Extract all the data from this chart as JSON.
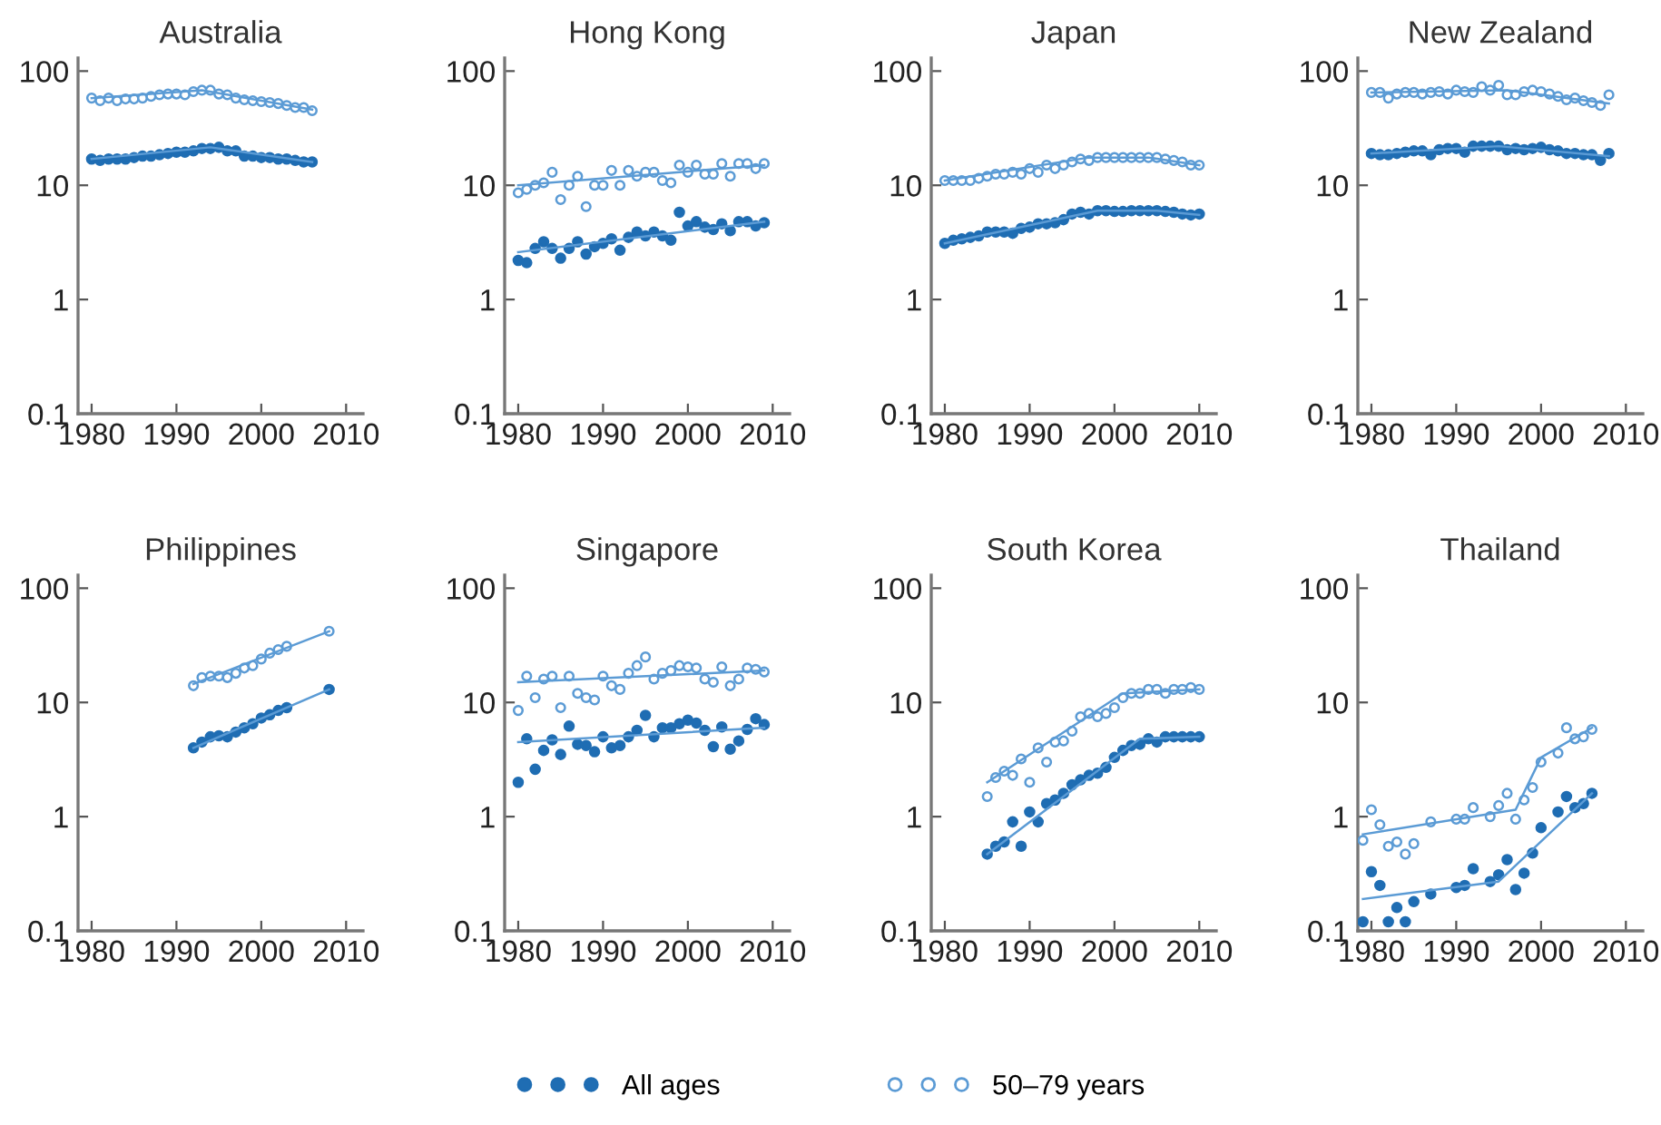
{
  "chart_data": [
    {
      "type": "scatter",
      "title": "Australia",
      "log": "y",
      "xlim": [
        1978.4,
        2012
      ],
      "xticks": [
        1980,
        1990,
        2000,
        2010
      ],
      "ylim": [
        0.1,
        130
      ],
      "yticks": [
        0.1,
        1,
        10,
        100
      ],
      "grid": false,
      "legend": "bottom",
      "series": [
        {
          "name": "All ages",
          "color": "#1f6db3",
          "marker": "circle",
          "x": [
            1980,
            1981,
            1982,
            1983,
            1984,
            1985,
            1986,
            1987,
            1988,
            1989,
            1990,
            1991,
            1992,
            1993,
            1994,
            1995,
            1996,
            1997,
            1998,
            1999,
            2000,
            2001,
            2002,
            2003,
            2004,
            2005,
            2006
          ],
          "values": [
            17,
            16.5,
            17,
            17,
            17,
            17.5,
            18,
            18,
            18.5,
            19,
            19.5,
            19.5,
            20,
            21,
            21,
            21.5,
            20,
            20,
            18,
            18,
            17.5,
            17.5,
            17,
            17,
            16.5,
            16,
            16
          ]
        },
        {
          "name": "50–79 years",
          "color": "#5b9bd5",
          "marker": "circle",
          "x": [
            1980,
            1981,
            1982,
            1983,
            1984,
            1985,
            1986,
            1987,
            1988,
            1989,
            1990,
            1991,
            1992,
            1993,
            1994,
            1995,
            1996,
            1997,
            1998,
            1999,
            2000,
            2001,
            2002,
            2003,
            2004,
            2005,
            2006
          ],
          "values": [
            58,
            55,
            58,
            55,
            57,
            57,
            58,
            60,
            62,
            63,
            63,
            62,
            66,
            68,
            68,
            63,
            62,
            58,
            56,
            55,
            54,
            53,
            52,
            50,
            48,
            48,
            45
          ]
        },
        {
          "type": "line",
          "color": "#5b9bd5",
          "marker": "none",
          "x": [
            1980,
            1994,
            2006
          ],
          "values": [
            17,
            21.5,
            16
          ]
        },
        {
          "type": "line",
          "color": "#5b9bd5",
          "marker": "none",
          "x": [
            1980,
            1993,
            2006
          ],
          "values": [
            58,
            68,
            46
          ]
        }
      ]
    },
    {
      "type": "scatter",
      "title": "Hong Kong",
      "log": "y",
      "xlim": [
        1978.4,
        2012
      ],
      "xticks": [
        1980,
        1990,
        2000,
        2010
      ],
      "ylim": [
        0.1,
        130
      ],
      "yticks": [
        0.1,
        1,
        10,
        100
      ],
      "grid": false,
      "series": [
        {
          "color": "#1f6db3",
          "marker": "circle",
          "x": [
            1980,
            1981,
            1982,
            1983,
            1984,
            1985,
            1986,
            1987,
            1988,
            1989,
            1990,
            1991,
            1992,
            1993,
            1994,
            1995,
            1996,
            1997,
            1998,
            1999,
            2000,
            2001,
            2002,
            2003,
            2004,
            2005,
            2006,
            2007,
            2008,
            2009
          ],
          "values": [
            2.2,
            2.1,
            2.8,
            3.2,
            2.8,
            2.3,
            2.8,
            3.2,
            2.5,
            2.9,
            3.1,
            3.4,
            2.7,
            3.5,
            3.9,
            3.6,
            3.9,
            3.6,
            3.3,
            5.8,
            4.4,
            4.8,
            4.3,
            4.1,
            4.6,
            4.0,
            4.8,
            4.8,
            4.4,
            4.7
          ]
        },
        {
          "color": "#5b9bd5",
          "marker": "circle",
          "x": [
            1980,
            1981,
            1982,
            1983,
            1984,
            1985,
            1986,
            1987,
            1988,
            1989,
            1990,
            1991,
            1992,
            1993,
            1994,
            1995,
            1996,
            1997,
            1998,
            1999,
            2000,
            2001,
            2002,
            2003,
            2004,
            2005,
            2006,
            2007,
            2008,
            2009
          ],
          "values": [
            8.6,
            9.2,
            10,
            10.5,
            13,
            7.5,
            10,
            12,
            6.5,
            10,
            10,
            13.5,
            10,
            13.5,
            12,
            13,
            13,
            11,
            10.5,
            15,
            13,
            15,
            12.5,
            12.5,
            15.5,
            12,
            15.5,
            15.5,
            14,
            15.5
          ]
        },
        {
          "type": "line",
          "color": "#5b9bd5",
          "marker": "none",
          "x": [
            1980,
            2009
          ],
          "values": [
            2.6,
            4.8
          ]
        },
        {
          "type": "line",
          "color": "#5b9bd5",
          "marker": "none",
          "x": [
            1980,
            2009
          ],
          "values": [
            10,
            15
          ]
        }
      ]
    },
    {
      "type": "scatter",
      "title": "Japan",
      "log": "y",
      "xlim": [
        1978.4,
        2012
      ],
      "xticks": [
        1980,
        1990,
        2000,
        2010
      ],
      "ylim": [
        0.1,
        130
      ],
      "yticks": [
        0.1,
        1,
        10,
        100
      ],
      "grid": false,
      "series": [
        {
          "color": "#1f6db3",
          "marker": "circle",
          "x": [
            1980,
            1981,
            1982,
            1983,
            1984,
            1985,
            1986,
            1987,
            1988,
            1989,
            1990,
            1991,
            1992,
            1993,
            1994,
            1995,
            1996,
            1997,
            1998,
            1999,
            2000,
            2001,
            2002,
            2003,
            2004,
            2005,
            2006,
            2007,
            2008,
            2009,
            2010
          ],
          "values": [
            3.1,
            3.3,
            3.4,
            3.5,
            3.6,
            3.9,
            3.9,
            3.9,
            3.8,
            4.2,
            4.3,
            4.6,
            4.6,
            4.7,
            5,
            5.6,
            5.8,
            5.6,
            6,
            6,
            5.9,
            5.9,
            6,
            6,
            6,
            6,
            5.9,
            5.8,
            5.6,
            5.5,
            5.6
          ]
        },
        {
          "color": "#5b9bd5",
          "marker": "circle",
          "x": [
            1980,
            1981,
            1982,
            1983,
            1984,
            1985,
            1986,
            1987,
            1988,
            1989,
            1990,
            1991,
            1992,
            1993,
            1994,
            1995,
            1996,
            1997,
            1998,
            1999,
            2000,
            2001,
            2002,
            2003,
            2004,
            2005,
            2006,
            2007,
            2008,
            2009,
            2010
          ],
          "values": [
            11,
            11,
            11,
            11,
            11.5,
            12,
            12.5,
            12.5,
            13,
            12.5,
            14,
            13,
            15,
            14,
            15,
            16,
            17,
            16.5,
            17.5,
            17.5,
            17.5,
            17.5,
            17.5,
            17.5,
            17.5,
            17.5,
            17,
            16.5,
            16,
            15,
            15
          ]
        },
        {
          "type": "line",
          "color": "#5b9bd5",
          "marker": "none",
          "x": [
            1980,
            1998,
            2005,
            2010
          ],
          "values": [
            3.1,
            6,
            6,
            5.5
          ]
        },
        {
          "type": "line",
          "color": "#5b9bd5",
          "marker": "none",
          "x": [
            1980,
            1997,
            2004,
            2010
          ],
          "values": [
            11,
            17.5,
            17.5,
            15
          ]
        }
      ]
    },
    {
      "type": "scatter",
      "title": "New Zealand",
      "log": "y",
      "xlim": [
        1978.4,
        2012
      ],
      "xticks": [
        1980,
        1990,
        2000,
        2010
      ],
      "ylim": [
        0.1,
        130
      ],
      "yticks": [
        0.1,
        1,
        10,
        100
      ],
      "grid": false,
      "series": [
        {
          "color": "#1f6db3",
          "marker": "circle",
          "x": [
            1980,
            1981,
            1982,
            1983,
            1984,
            1985,
            1986,
            1987,
            1988,
            1989,
            1990,
            1991,
            1992,
            1993,
            1994,
            1995,
            1996,
            1997,
            1998,
            1999,
            2000,
            2001,
            2002,
            2003,
            2004,
            2005,
            2006,
            2007,
            2008
          ],
          "values": [
            19,
            18.5,
            18.5,
            19,
            19.5,
            20,
            20,
            18.5,
            20.5,
            21,
            21,
            19.5,
            22,
            22,
            22,
            22,
            20.5,
            21,
            20.5,
            21,
            21.5,
            20.5,
            20,
            19,
            19,
            18.5,
            18.5,
            16.5,
            19
          ]
        },
        {
          "color": "#5b9bd5",
          "marker": "circle",
          "x": [
            1980,
            1981,
            1982,
            1983,
            1984,
            1985,
            1986,
            1987,
            1988,
            1989,
            1990,
            1991,
            1992,
            1993,
            1994,
            1995,
            1996,
            1997,
            1998,
            1999,
            2000,
            2001,
            2002,
            2003,
            2004,
            2005,
            2006,
            2007,
            2008
          ],
          "values": [
            65,
            65,
            58,
            63,
            65,
            65,
            63,
            65,
            66,
            63,
            68,
            66,
            65,
            73,
            68,
            75,
            62,
            62,
            66,
            68,
            66,
            63,
            60,
            56,
            58,
            55,
            53,
            50,
            62
          ]
        },
        {
          "type": "line",
          "color": "#5b9bd5",
          "marker": "none",
          "x": [
            1980,
            1995,
            2008
          ],
          "values": [
            19,
            22,
            18
          ]
        },
        {
          "type": "line",
          "color": "#5b9bd5",
          "marker": "none",
          "x": [
            1980,
            1996,
            2008
          ],
          "values": [
            65,
            68,
            52
          ]
        }
      ]
    },
    {
      "type": "scatter",
      "title": "Philippines",
      "log": "y",
      "xlim": [
        1978.4,
        2012
      ],
      "xticks": [
        1980,
        1990,
        2000,
        2010
      ],
      "ylim": [
        0.1,
        130
      ],
      "yticks": [
        0.1,
        1,
        10,
        100
      ],
      "grid": false,
      "series": [
        {
          "color": "#1f6db3",
          "marker": "circle",
          "x": [
            1992,
            1993,
            1994,
            1995,
            1996,
            1997,
            1998,
            1999,
            2000,
            2001,
            2002,
            2003,
            2008
          ],
          "values": [
            4.0,
            4.5,
            5.0,
            5.1,
            5.0,
            5.5,
            6.0,
            6.5,
            7.3,
            7.8,
            8.5,
            9.0,
            13
          ]
        },
        {
          "color": "#5b9bd5",
          "marker": "circle",
          "x": [
            1992,
            1993,
            1994,
            1995,
            1996,
            1997,
            1998,
            1999,
            2000,
            2001,
            2002,
            2003,
            2008
          ],
          "values": [
            14,
            16.5,
            17,
            17,
            16.5,
            18,
            20,
            21,
            24,
            27,
            29,
            31,
            42
          ]
        },
        {
          "type": "line",
          "color": "#5b9bd5",
          "marker": "none",
          "x": [
            1992,
            2008
          ],
          "values": [
            4.0,
            13
          ]
        },
        {
          "type": "line",
          "color": "#5b9bd5",
          "marker": "none",
          "x": [
            1992,
            2008
          ],
          "values": [
            14.5,
            42
          ]
        }
      ]
    },
    {
      "type": "scatter",
      "title": "Singapore",
      "log": "y",
      "xlim": [
        1978.4,
        2012
      ],
      "xticks": [
        1980,
        1990,
        2000,
        2010
      ],
      "ylim": [
        0.1,
        130
      ],
      "yticks": [
        0.1,
        1,
        10,
        100
      ],
      "grid": false,
      "series": [
        {
          "color": "#1f6db3",
          "marker": "circle",
          "x": [
            1980,
            1981,
            1982,
            1983,
            1984,
            1985,
            1986,
            1987,
            1988,
            1989,
            1990,
            1991,
            1992,
            1993,
            1994,
            1995,
            1996,
            1997,
            1998,
            1999,
            2000,
            2001,
            2002,
            2003,
            2004,
            2005,
            2006,
            2007,
            2008,
            2009
          ],
          "values": [
            2.0,
            4.8,
            2.6,
            3.8,
            4.7,
            3.5,
            6.2,
            4.3,
            4.2,
            3.7,
            5,
            4,
            4.2,
            5,
            5.7,
            7.7,
            5,
            6,
            6,
            6.5,
            7,
            6.6,
            5.7,
            4.1,
            6.1,
            3.9,
            4.6,
            5.8,
            7.2,
            6.4
          ]
        },
        {
          "color": "#5b9bd5",
          "marker": "circle",
          "x": [
            1980,
            1981,
            1982,
            1983,
            1984,
            1985,
            1986,
            1987,
            1988,
            1989,
            1990,
            1991,
            1992,
            1993,
            1994,
            1995,
            1996,
            1997,
            1998,
            1999,
            2000,
            2001,
            2002,
            2003,
            2004,
            2005,
            2006,
            2007,
            2008,
            2009
          ],
          "values": [
            8.5,
            17,
            11,
            16,
            17,
            9,
            17,
            12,
            11,
            10.5,
            17,
            14,
            13,
            18,
            21,
            25,
            16,
            18,
            19,
            21,
            20.5,
            20,
            16,
            15,
            20.5,
            14,
            16,
            20,
            19.5,
            18.5
          ]
        },
        {
          "type": "line",
          "color": "#5b9bd5",
          "marker": "none",
          "x": [
            1980,
            2009
          ],
          "values": [
            4.5,
            6
          ]
        },
        {
          "type": "line",
          "color": "#5b9bd5",
          "marker": "none",
          "x": [
            1980,
            2009
          ],
          "values": [
            15,
            19
          ]
        }
      ]
    },
    {
      "type": "scatter",
      "title": "South Korea",
      "log": "y",
      "xlim": [
        1978.4,
        2012
      ],
      "xticks": [
        1980,
        1990,
        2000,
        2010
      ],
      "ylim": [
        0.1,
        130
      ],
      "yticks": [
        0.1,
        1,
        10,
        100
      ],
      "grid": false,
      "series": [
        {
          "color": "#1f6db3",
          "marker": "circle",
          "x": [
            1985,
            1986,
            1987,
            1988,
            1989,
            1990,
            1991,
            1992,
            1993,
            1994,
            1995,
            1996,
            1997,
            1998,
            1999,
            2000,
            2001,
            2002,
            2003,
            2004,
            2005,
            2006,
            2007,
            2008,
            2009,
            2010
          ],
          "values": [
            0.47,
            0.55,
            0.6,
            0.9,
            0.55,
            1.1,
            0.9,
            1.3,
            1.4,
            1.6,
            1.9,
            2.1,
            2.3,
            2.4,
            2.7,
            3.3,
            3.8,
            4.2,
            4.3,
            4.8,
            4.5,
            5,
            5,
            5,
            5,
            5
          ]
        },
        {
          "color": "#5b9bd5",
          "marker": "circle",
          "x": [
            1985,
            1986,
            1987,
            1988,
            1989,
            1990,
            1991,
            1992,
            1993,
            1994,
            1995,
            1996,
            1997,
            1998,
            1999,
            2000,
            2001,
            2002,
            2003,
            2004,
            2005,
            2006,
            2007,
            2008,
            2009,
            2010
          ],
          "values": [
            1.5,
            2.2,
            2.5,
            2.3,
            3.2,
            2.0,
            4.0,
            3.0,
            4.5,
            4.6,
            5.6,
            7.5,
            8,
            7.5,
            8,
            9,
            11,
            12,
            12,
            13,
            13,
            12,
            13,
            13,
            13.5,
            13
          ]
        },
        {
          "type": "line",
          "color": "#5b9bd5",
          "marker": "none",
          "x": [
            1985,
            2003,
            2010
          ],
          "values": [
            0.47,
            4.8,
            5
          ]
        },
        {
          "type": "line",
          "color": "#5b9bd5",
          "marker": "none",
          "x": [
            1985,
            2001,
            2010
          ],
          "values": [
            2,
            12,
            13
          ]
        }
      ]
    },
    {
      "type": "scatter",
      "title": "Thailand",
      "log": "y",
      "xlim": [
        1978.4,
        2012
      ],
      "xticks": [
        1980,
        1990,
        2000,
        2010
      ],
      "ylim": [
        0.1,
        130
      ],
      "yticks": [
        0.1,
        1,
        10,
        100
      ],
      "grid": false,
      "series": [
        {
          "color": "#1f6db3",
          "marker": "circle",
          "x": [
            1979,
            1980,
            1981,
            1982,
            1983,
            1984,
            1985,
            1987,
            1990,
            1991,
            1992,
            1994,
            1995,
            1996,
            1997,
            1998,
            1999,
            2000,
            2002,
            2003,
            2004,
            2005,
            2006
          ],
          "values": [
            0.12,
            0.33,
            0.25,
            0.12,
            0.16,
            0.12,
            0.18,
            0.21,
            0.24,
            0.25,
            0.35,
            0.27,
            0.31,
            0.42,
            0.23,
            0.32,
            0.48,
            0.8,
            1.1,
            1.5,
            1.2,
            1.3,
            1.6
          ]
        },
        {
          "color": "#5b9bd5",
          "marker": "circle",
          "x": [
            1979,
            1980,
            1981,
            1982,
            1983,
            1984,
            1985,
            1987,
            1990,
            1991,
            1992,
            1994,
            1995,
            1996,
            1997,
            1998,
            1999,
            2000,
            2002,
            2003,
            2004,
            2005,
            2006
          ],
          "values": [
            0.62,
            1.15,
            0.85,
            0.55,
            0.6,
            0.47,
            0.58,
            0.9,
            0.95,
            0.95,
            1.2,
            1.0,
            1.25,
            1.6,
            0.95,
            1.4,
            1.8,
            3.0,
            3.6,
            6,
            4.8,
            5,
            5.8
          ]
        },
        {
          "type": "line",
          "color": "#5b9bd5",
          "marker": "none",
          "x": [
            1979,
            1995,
            2006
          ],
          "values": [
            0.19,
            0.27,
            1.6
          ]
        },
        {
          "type": "line",
          "color": "#5b9bd5",
          "marker": "none",
          "x": [
            1979,
            1997,
            2000,
            2006
          ],
          "values": [
            0.7,
            1.15,
            3.3,
            6
          ]
        }
      ]
    }
  ]
}
